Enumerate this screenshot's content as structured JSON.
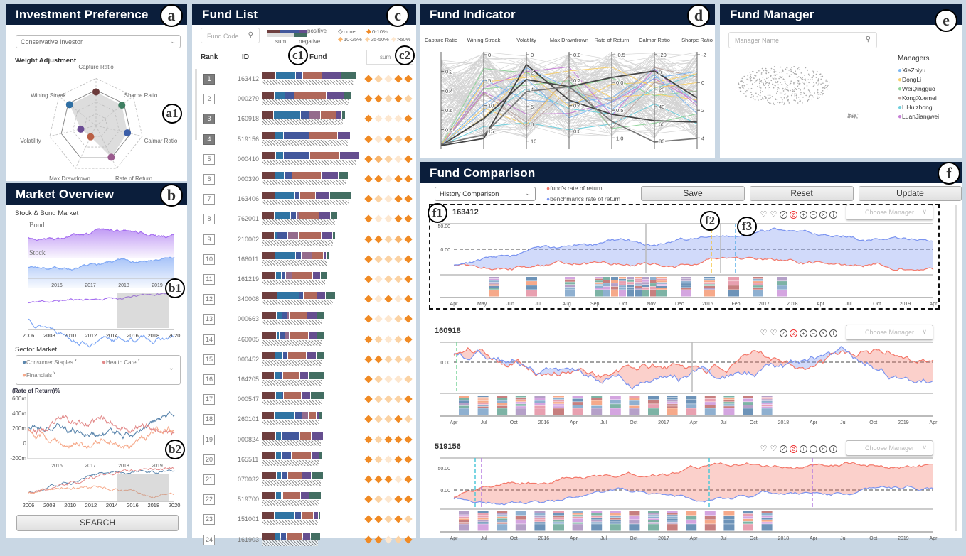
{
  "badges": {
    "a": "a",
    "a1": "a1",
    "b": "b",
    "b1": "b1",
    "b2": "b2",
    "c": "c",
    "c1": "c1",
    "c2": "c2",
    "d": "d",
    "e": "e",
    "f": "f",
    "f1": "f1",
    "f2": "f2",
    "f3": "f3"
  },
  "colors": {
    "header": "#0b1e3b",
    "fund": "#f4786a",
    "benchmark": "#7b94f0",
    "diamond": [
      "#f08a24",
      "#f8b36a",
      "#fbd2a3",
      "#fde7cf"
    ]
  },
  "investment": {
    "title": "Investment Preference",
    "profile": "Conservative Investor",
    "weight_label": "Weight Adjustment",
    "radar_axes": [
      {
        "label": "Capture Ratio",
        "value": 0.82,
        "color": "#6b3a3a"
      },
      {
        "label": "Sharpe Ratio",
        "value": 0.8,
        "color": "#3f7f62"
      },
      {
        "label": "Calmar Ratio",
        "value": 0.78,
        "color": "#3b5ea8"
      },
      {
        "label": "Rate of Return",
        "value": 0.85,
        "color": "#9a5b8e"
      },
      {
        "label": "Max Drawdrown",
        "value": 0.3,
        "color": "#b95f45"
      },
      {
        "label": "Volatility",
        "value": 0.38,
        "color": "#6b4c94"
      },
      {
        "label": "Wining Streak",
        "value": 0.82,
        "color": "#2f6fa3"
      }
    ]
  },
  "market": {
    "title": "Market Overview",
    "stock_bond_label": "Stock & Bond Market",
    "bond_label": "Bond",
    "stock_label": "Stock",
    "detail_years": [
      "2016",
      "2017",
      "2018",
      "2019"
    ],
    "overview_years": [
      "2006",
      "2008",
      "2010",
      "2012",
      "2014",
      "2016",
      "2018",
      "2020"
    ],
    "sector_label": "Sector Market",
    "sectors": [
      {
        "name": "Consumer Staples",
        "color": "#5b86ad"
      },
      {
        "name": "Health Care",
        "color": "#e28a8a"
      },
      {
        "name": "Financials",
        "color": "#f6a98a"
      }
    ],
    "sector_remove": "x",
    "ror_label": "(Rate of Return)%",
    "ror_ticks": [
      "600m",
      "400m",
      "200m",
      "0",
      "-200m"
    ],
    "search_label": "SEARCH"
  },
  "fundlist": {
    "title": "Fund List",
    "search_placeholder": "Fund Code",
    "legend": {
      "positive": "positive",
      "negative": "negative",
      "sum": "sum",
      "none": "none",
      "levels": [
        "0-10%",
        "10-25%",
        "25-50%",
        ">50%"
      ]
    },
    "col_rank": "Rank",
    "col_id": "ID",
    "col_fund": "Fund",
    "sort_value": "sum",
    "segment_colors": [
      "#6e3f3f",
      "#2f74a3",
      "#43589c",
      "#946b8c",
      "#b0685a",
      "#654e8f",
      "#436e62"
    ],
    "rows": [
      {
        "rank": "1",
        "id": "163412",
        "sum": 0.97,
        "seg": [
          14,
          21,
          8,
          20,
          20,
          16
        ],
        "lv": [
          1,
          3,
          4,
          1,
          1
        ],
        "dark": true
      },
      {
        "rank": "2",
        "id": "000279",
        "sum": 0.92,
        "seg": [
          13,
          11,
          10,
          34,
          19,
          8
        ],
        "lv": [
          1,
          1,
          3,
          1,
          3
        ]
      },
      {
        "rank": "3",
        "id": "160918",
        "sum": 0.86,
        "seg": [
          12,
          28,
          9,
          12,
          16,
          6,
          4
        ],
        "lv": [
          1,
          4,
          4,
          4,
          1
        ],
        "dark": true
      },
      {
        "rank": "4",
        "id": "519156",
        "sum": 0.91,
        "seg": [
          14,
          9,
          28,
          30,
          14
        ],
        "lv": [
          1,
          4,
          1,
          3,
          1
        ],
        "dark": true
      },
      {
        "rank": "5",
        "id": "000410",
        "sum": 1.0,
        "seg": [
          14,
          8,
          28,
          31,
          20
        ],
        "lv": [
          1,
          2,
          3,
          4,
          1
        ]
      },
      {
        "rank": "6",
        "id": "000390",
        "sum": 0.89,
        "seg": [
          13,
          10,
          8,
          30,
          18,
          10
        ],
        "lv": [
          1,
          1,
          4,
          1,
          1
        ]
      },
      {
        "rank": "7",
        "id": "163406",
        "sum": 0.92,
        "seg": [
          13,
          21,
          5,
          16,
          15,
          22
        ],
        "lv": [
          1,
          3,
          4,
          1,
          1
        ]
      },
      {
        "rank": "8",
        "id": "762001",
        "sum": 0.78,
        "seg": [
          12,
          17,
          6,
          3,
          20,
          12,
          7
        ],
        "lv": [
          1,
          4,
          4,
          1,
          1
        ]
      },
      {
        "rank": "9",
        "id": "210002",
        "sum": 0.76,
        "seg": [
          12,
          3,
          11,
          11,
          23,
          12,
          3
        ],
        "lv": [
          1,
          1,
          3,
          2,
          1
        ]
      },
      {
        "rank": "10",
        "id": "166011",
        "sum": 0.69,
        "seg": [
          13,
          21,
          6,
          11,
          11,
          3,
          3
        ],
        "lv": [
          1,
          3,
          3,
          3,
          1
        ]
      },
      {
        "rank": "11",
        "id": "161219",
        "sum": 0.68,
        "seg": [
          14,
          6,
          4,
          7,
          21,
          8,
          8
        ],
        "lv": [
          1,
          4,
          3,
          3,
          1
        ]
      },
      {
        "rank": "12",
        "id": "340008",
        "sum": 0.76,
        "seg": [
          14,
          21,
          4,
          13,
          8,
          10
        ],
        "lv": [
          1,
          4,
          1,
          4,
          1
        ]
      },
      {
        "rank": "13",
        "id": "000663",
        "sum": 0.65,
        "seg": [
          14,
          6,
          5,
          2,
          18,
          10,
          8
        ],
        "lv": [
          1,
          4,
          4,
          3,
          1
        ]
      },
      {
        "rank": "14",
        "id": "460005",
        "sum": 0.65,
        "seg": [
          14,
          3,
          6,
          4,
          19,
          9,
          8
        ],
        "lv": [
          1,
          3,
          4,
          3,
          1
        ]
      },
      {
        "rank": "15",
        "id": "000452",
        "sum": 0.65,
        "seg": [
          13,
          8,
          5,
          19,
          10,
          9
        ],
        "lv": [
          1,
          1,
          3,
          3,
          3
        ]
      },
      {
        "rank": "16",
        "id": "164205",
        "sum": 0.64,
        "seg": [
          12,
          6,
          3,
          17,
          9,
          16
        ],
        "lv": [
          1,
          3,
          4,
          4,
          3
        ]
      },
      {
        "rank": "17",
        "id": "000547",
        "sum": 0.65,
        "seg": [
          14,
          6,
          2,
          18,
          9,
          15
        ],
        "lv": [
          1,
          3,
          3,
          3,
          1
        ]
      },
      {
        "rank": "18",
        "id": "260101",
        "sum": 0.62,
        "seg": [
          12,
          21,
          7,
          6,
          8,
          3,
          3
        ],
        "lv": [
          1,
          3,
          3,
          1,
          3
        ]
      },
      {
        "rank": "19",
        "id": "000824",
        "sum": 0.63,
        "seg": [
          14,
          6,
          19,
          12,
          12
        ],
        "lv": [
          1,
          3,
          1,
          1,
          1
        ]
      },
      {
        "rank": "20",
        "id": "165511",
        "sum": 0.62,
        "seg": [
          14,
          6,
          10,
          21,
          8,
          3
        ],
        "lv": [
          1,
          3,
          4,
          1,
          1
        ]
      },
      {
        "rank": "21",
        "id": "070032",
        "sum": 0.63,
        "seg": [
          14,
          5,
          6,
          14,
          9,
          12
        ],
        "lv": [
          1,
          1,
          1,
          4,
          1
        ]
      },
      {
        "rank": "22",
        "id": "519700",
        "sum": 0.61,
        "seg": [
          14,
          6,
          2,
          18,
          9,
          13
        ],
        "lv": [
          1,
          3,
          4,
          1,
          1
        ]
      },
      {
        "rank": "23",
        "id": "151001",
        "sum": 0.6,
        "seg": [
          12,
          21,
          6,
          12,
          5,
          2
        ],
        "lv": [
          1,
          1,
          3,
          1,
          3
        ]
      },
      {
        "rank": "24",
        "id": "161903",
        "sum": 0.6,
        "seg": [
          13,
          6,
          6,
          17,
          8,
          10
        ],
        "lv": [
          1,
          1,
          4,
          3,
          1
        ]
      }
    ]
  },
  "indicator": {
    "title": "Fund Indicator",
    "axes": [
      {
        "label": "Capture Ratio",
        "ticks": [
          "0.2",
          "0.4",
          "0.6",
          "0.8"
        ]
      },
      {
        "label": "Wining Streak",
        "ticks": [
          "0",
          "5",
          "10",
          "15"
        ]
      },
      {
        "label": "Volatility",
        "ticks": [
          "0",
          "2",
          "4",
          "6",
          "8",
          "10"
        ]
      },
      {
        "label": "Max Drawdrown",
        "ticks": [
          "0.0",
          "0.2",
          "0.4",
          "0.6"
        ]
      },
      {
        "label": "Rate of Return",
        "ticks": [
          "-0.5",
          "0.0",
          "0.5",
          "1.0"
        ]
      },
      {
        "label": "Calmar Ratio",
        "ticks": [
          "-20",
          "0",
          "20",
          "40",
          "60",
          "80"
        ]
      },
      {
        "label": "Sharpe Ratio",
        "ticks": [
          "-2",
          "0",
          "2",
          "4"
        ]
      }
    ]
  },
  "manager": {
    "title": "Fund Manager",
    "search_placeholder": "Manager Name",
    "legend_title": "Managers",
    "managers": [
      {
        "name": "XieZhiyu",
        "color": "#7fb8f0"
      },
      {
        "name": "DongLi",
        "color": "#f7d06e"
      },
      {
        "name": "WeiQingguo",
        "color": "#8fd49a"
      },
      {
        "name": "KongXuemei",
        "color": "#b9a39f"
      },
      {
        "name": "LiHuizhong",
        "color": "#6fd0de"
      },
      {
        "name": "LuanJiangwei",
        "color": "#c77fd6"
      }
    ]
  },
  "comparison": {
    "title": "Fund Comparison",
    "mode": "History Comparison",
    "legend_fund": "fund's rate of return",
    "legend_bench": "benchmark's rate of return",
    "save": "Save",
    "reset": "Reset",
    "update": "Update",
    "choose_manager": "Choose Manager",
    "icons": [
      "heart-icon",
      "heart-off-icon",
      "check-circle-icon",
      "compass-icon",
      "plus-circle-icon",
      "minus-circle-icon",
      "x-circle-icon",
      "info-circle-icon"
    ],
    "cards": [
      {
        "id": "163412",
        "ticks": [
          "50.00",
          "0.00"
        ],
        "months": [
          "Apr",
          "May",
          "Jun",
          "Jul",
          "Aug",
          "Sep",
          "Oct",
          "Nov",
          "Dec",
          "2016",
          "Feb",
          "2017",
          "2018",
          "Apr",
          "Jul",
          "Oct",
          "2019",
          "Apr"
        ]
      },
      {
        "id": "160918",
        "ticks": [
          "0.00"
        ],
        "months": [
          "Apr",
          "Jul",
          "Oct",
          "2016",
          "Apr",
          "Jul",
          "Oct",
          "2017",
          "Apr",
          "Jul",
          "Oct",
          "2018",
          "Apr",
          "Jul",
          "Oct",
          "2019",
          "Apr"
        ]
      },
      {
        "id": "519156",
        "ticks": [
          "50.00",
          "0.00"
        ],
        "months": [
          "Apr",
          "Jul",
          "Oct",
          "2016",
          "Apr",
          "Jul",
          "Oct",
          "2017",
          "Apr",
          "Jul",
          "Oct",
          "2018",
          "Apr",
          "Jul",
          "Oct",
          "2019",
          "Apr"
        ]
      }
    ]
  }
}
